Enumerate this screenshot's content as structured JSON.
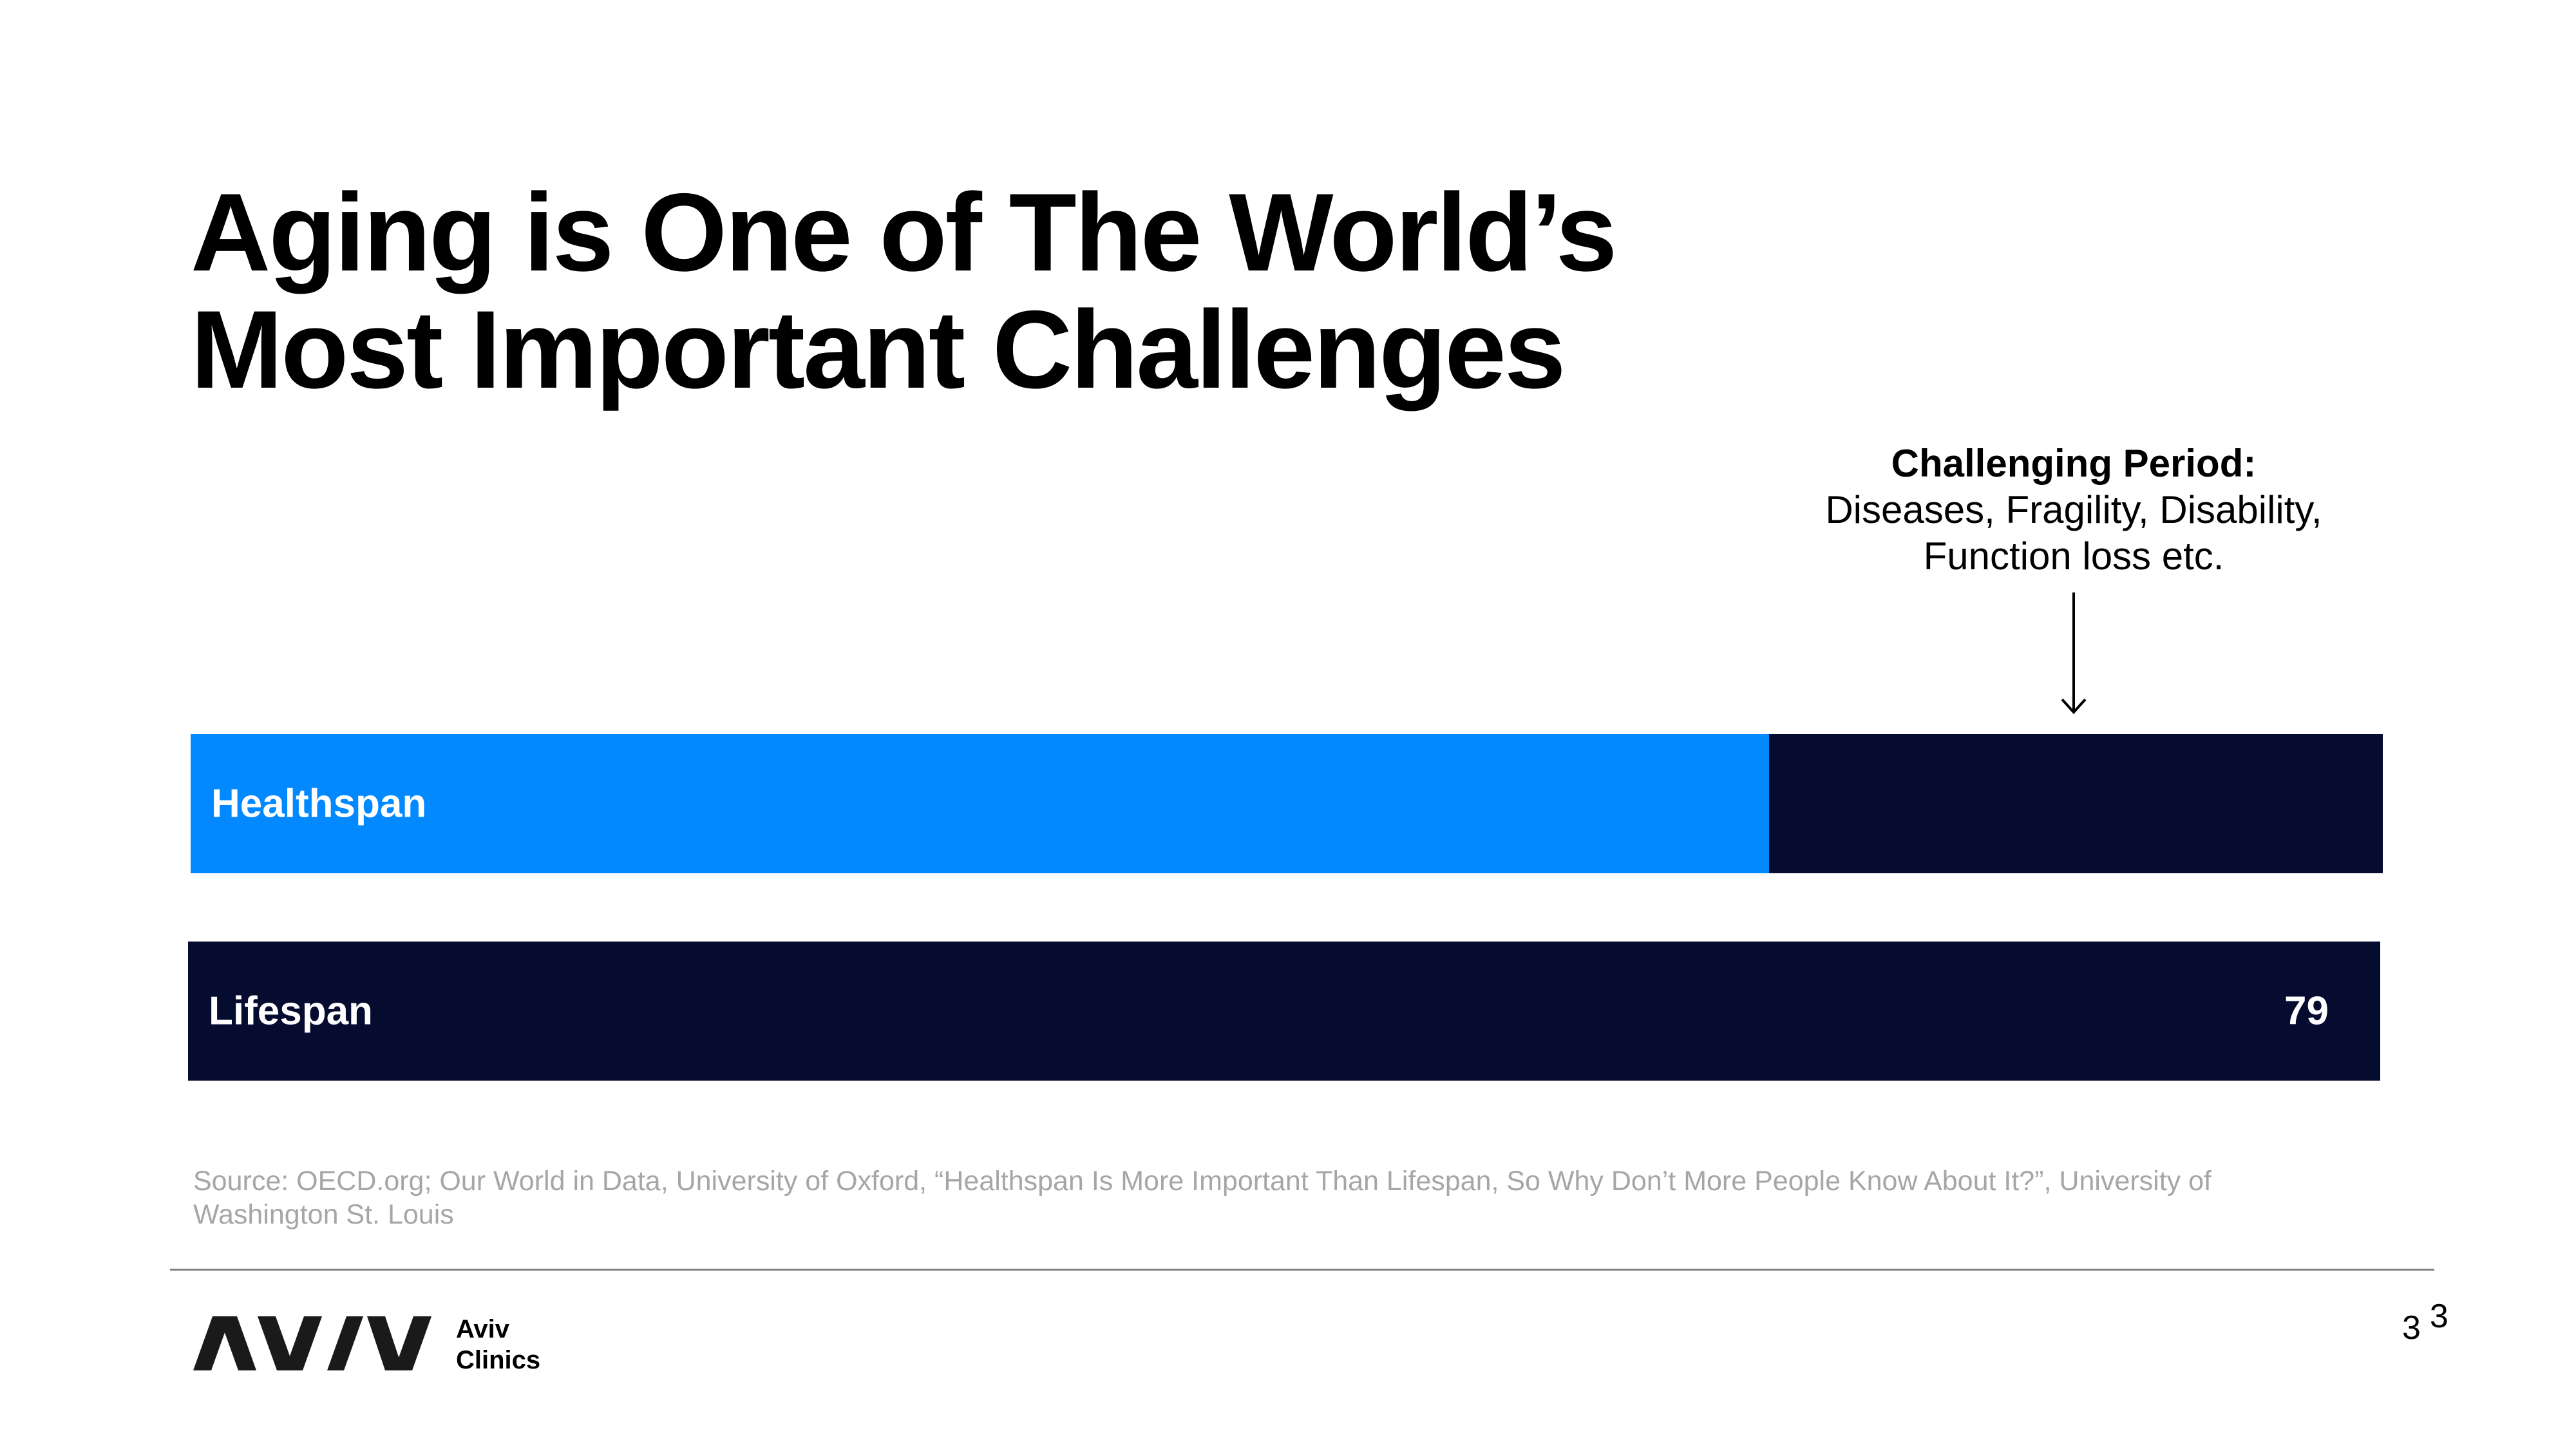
{
  "slide": {
    "title_lines": [
      "Aging is One of The World’s",
      "Most Important Challenges"
    ]
  },
  "annotation": {
    "heading": "Challenging Period:",
    "lines": [
      "Diseases, Fragility, Disability,",
      "Function loss etc."
    ],
    "icon": "arrow-down-icon"
  },
  "chart_data": {
    "type": "bar",
    "orientation": "horizontal",
    "categories": [
      "Healthspan",
      "Lifespan"
    ],
    "values": [
      null,
      79
    ],
    "data_labels": [
      "",
      "79"
    ],
    "healthspan_fraction_of_lifespan": 0.72,
    "colors": {
      "healthspan": "#0389ff",
      "lifespan": "#060b30"
    }
  },
  "source": {
    "text": "Source: OECD.org; Our World in Data, University of Oxford, “Healthspan Is More Important Than Lifespan, So Why Don’t More People Know About It?”, University of Washington St. Louis"
  },
  "footer": {
    "logo_icon": "aviv-logo-icon",
    "logo_text_lines": [
      "Aviv",
      "Clinics"
    ],
    "page_numbers": [
      "3",
      "3"
    ]
  }
}
